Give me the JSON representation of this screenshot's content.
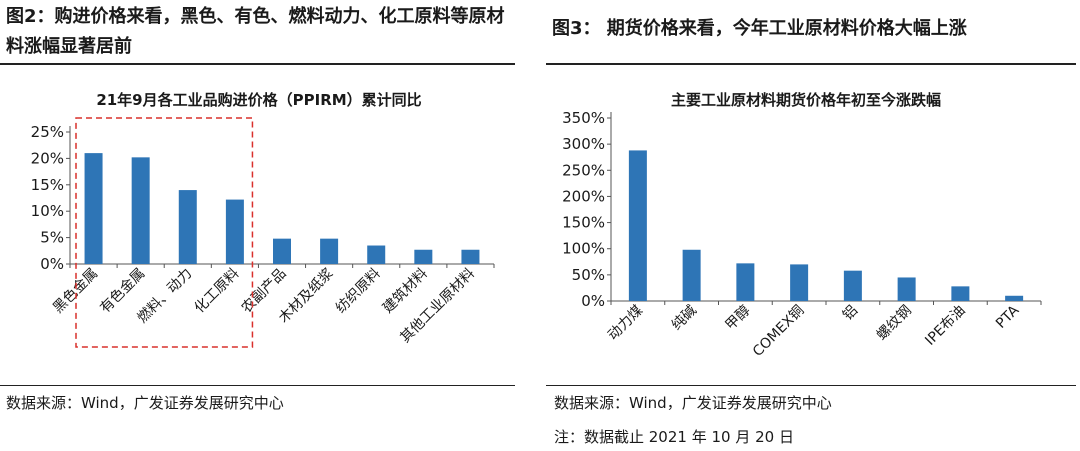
{
  "figures": [
    {
      "title": "图2：购进价格来看，黑色、有色、燃料动力、化工原料等原材料涨幅显著居前",
      "source": "数据来源：Wind，广发证券发展研究中心"
    },
    {
      "title": "图3：  期货价格来看，今年工业原材料价格大幅上涨",
      "source": "数据来源：Wind，广发证券发展研究中心",
      "note": "注：数据截止 2021 年 10 月 20 日"
    }
  ],
  "chart_data": [
    {
      "type": "bar",
      "title": "21年9月各工业品购进价格（PPIRM）累计同比",
      "categories": [
        "黑色金属",
        "有色金属",
        "燃料、动力",
        "化工原料",
        "农副产品",
        "木材及纸浆",
        "纺织原料",
        "建筑材料",
        "其他工业原材料"
      ],
      "values": [
        21.0,
        20.2,
        14.0,
        12.2,
        4.8,
        4.8,
        3.5,
        2.7,
        2.7
      ],
      "yticks": [
        "0%",
        "5%",
        "10%",
        "15%",
        "20%",
        "25%"
      ],
      "ylim": [
        0,
        25
      ],
      "color": "#2e75b6",
      "highlight": {
        "style": "red dashed box",
        "color": "#d9302c",
        "categories": [
          "黑色金属",
          "有色金属",
          "燃料、动力",
          "化工原料"
        ]
      }
    },
    {
      "type": "bar",
      "title": "主要工业原材料期货价格年初至今涨跌幅",
      "categories": [
        "动力煤",
        "纯碱",
        "甲醇",
        "COMEX铜",
        "铝",
        "螺纹钢",
        "IPE布油",
        "PTA"
      ],
      "values": [
        288,
        98,
        72,
        70,
        58,
        45,
        28,
        10
      ],
      "yticks": [
        "0%",
        "50%",
        "100%",
        "150%",
        "200%",
        "250%",
        "300%",
        "350%"
      ],
      "ylim": [
        0,
        350
      ],
      "color": "#2e75b6"
    }
  ]
}
